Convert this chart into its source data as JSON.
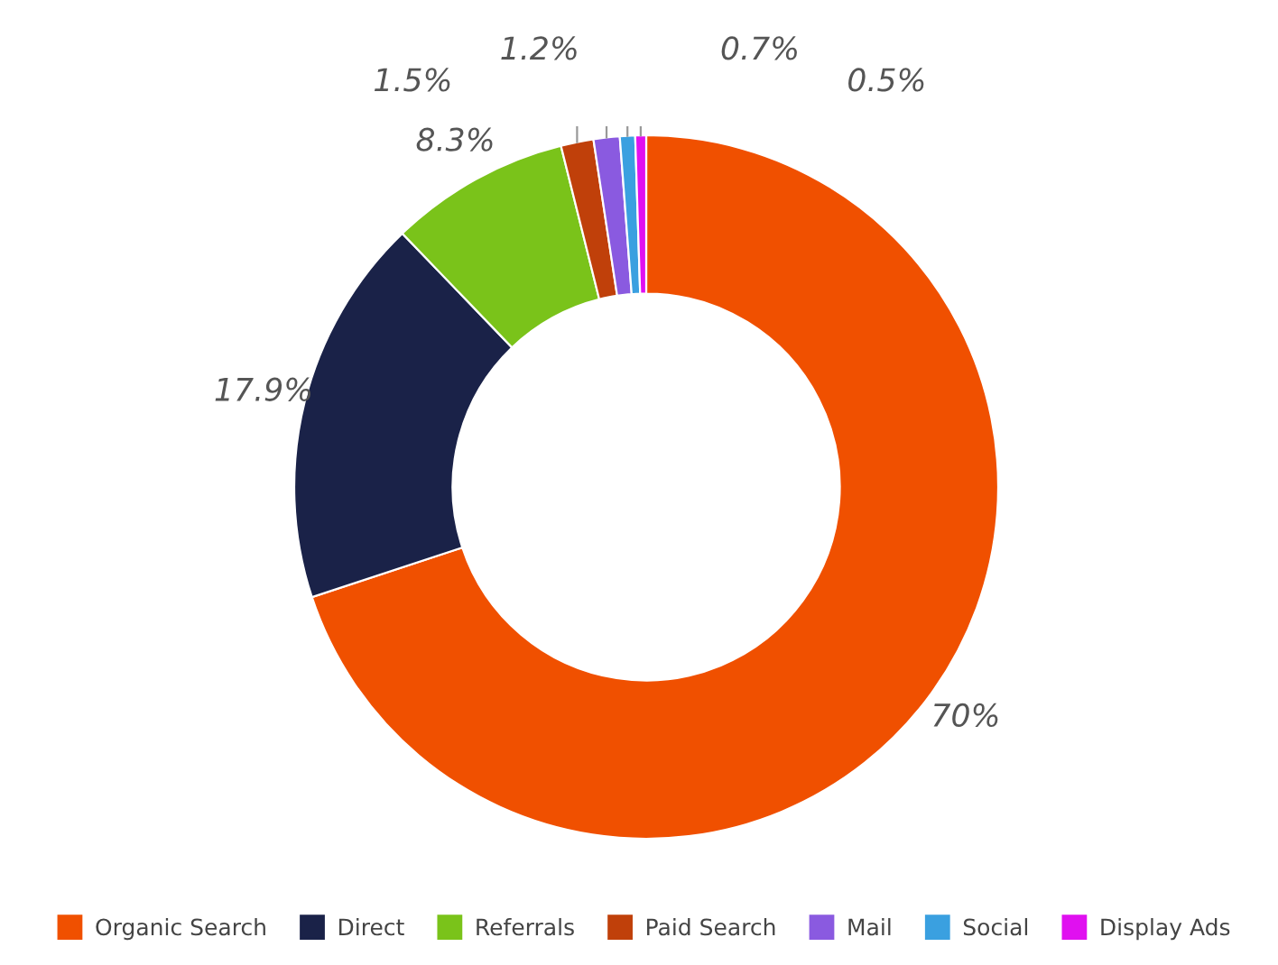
{
  "chart_data": {
    "type": "donut",
    "categories": [
      "Organic Search",
      "Direct",
      "Referrals",
      "Paid Search",
      "Mail",
      "Social",
      "Display Ads"
    ],
    "values": [
      70,
      17.9,
      8.3,
      1.5,
      1.2,
      0.7,
      0.5
    ],
    "colors": [
      "#f05000",
      "#1a2248",
      "#7ac31a",
      "#c0400a",
      "#8a5ae0",
      "#3aa0e0",
      "#e010f0"
    ],
    "value_labels": [
      "70%",
      "17.9%",
      "8.3%",
      "1.5%",
      "1.2%",
      "0.7%",
      "0.5%"
    ],
    "legend": "bottom"
  }
}
